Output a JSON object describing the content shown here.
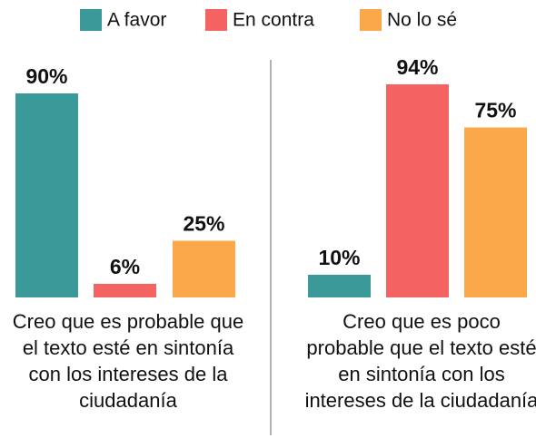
{
  "chart_data": [
    {
      "type": "bar",
      "categories": [
        "Creo que es probable que el texto esté en sintonía con los intereses de la ciudadanía"
      ],
      "series": [
        {
          "name": "A favor",
          "color": "#3a9a9a",
          "values": [
            90
          ],
          "value_labels": [
            "90%"
          ]
        },
        {
          "name": "En contra",
          "color": "#f56262",
          "values": [
            6
          ],
          "value_labels": [
            "6%"
          ]
        },
        {
          "name": "No lo sé",
          "color": "#fba84a",
          "values": [
            25
          ],
          "value_labels": [
            "25%"
          ]
        }
      ]
    },
    {
      "type": "bar",
      "categories": [
        "Creo que es poco probable que el texto esté en sintonía con los intereses de la ciudadanía"
      ],
      "series": [
        {
          "name": "A favor",
          "color": "#3a9a9a",
          "values": [
            10
          ],
          "value_labels": [
            "10%"
          ]
        },
        {
          "name": "En contra",
          "color": "#f56262",
          "values": [
            94
          ],
          "value_labels": [
            "94%"
          ]
        },
        {
          "name": "No lo sé",
          "color": "#fba84a",
          "values": [
            75
          ],
          "value_labels": [
            "75%"
          ]
        }
      ]
    }
  ]
}
